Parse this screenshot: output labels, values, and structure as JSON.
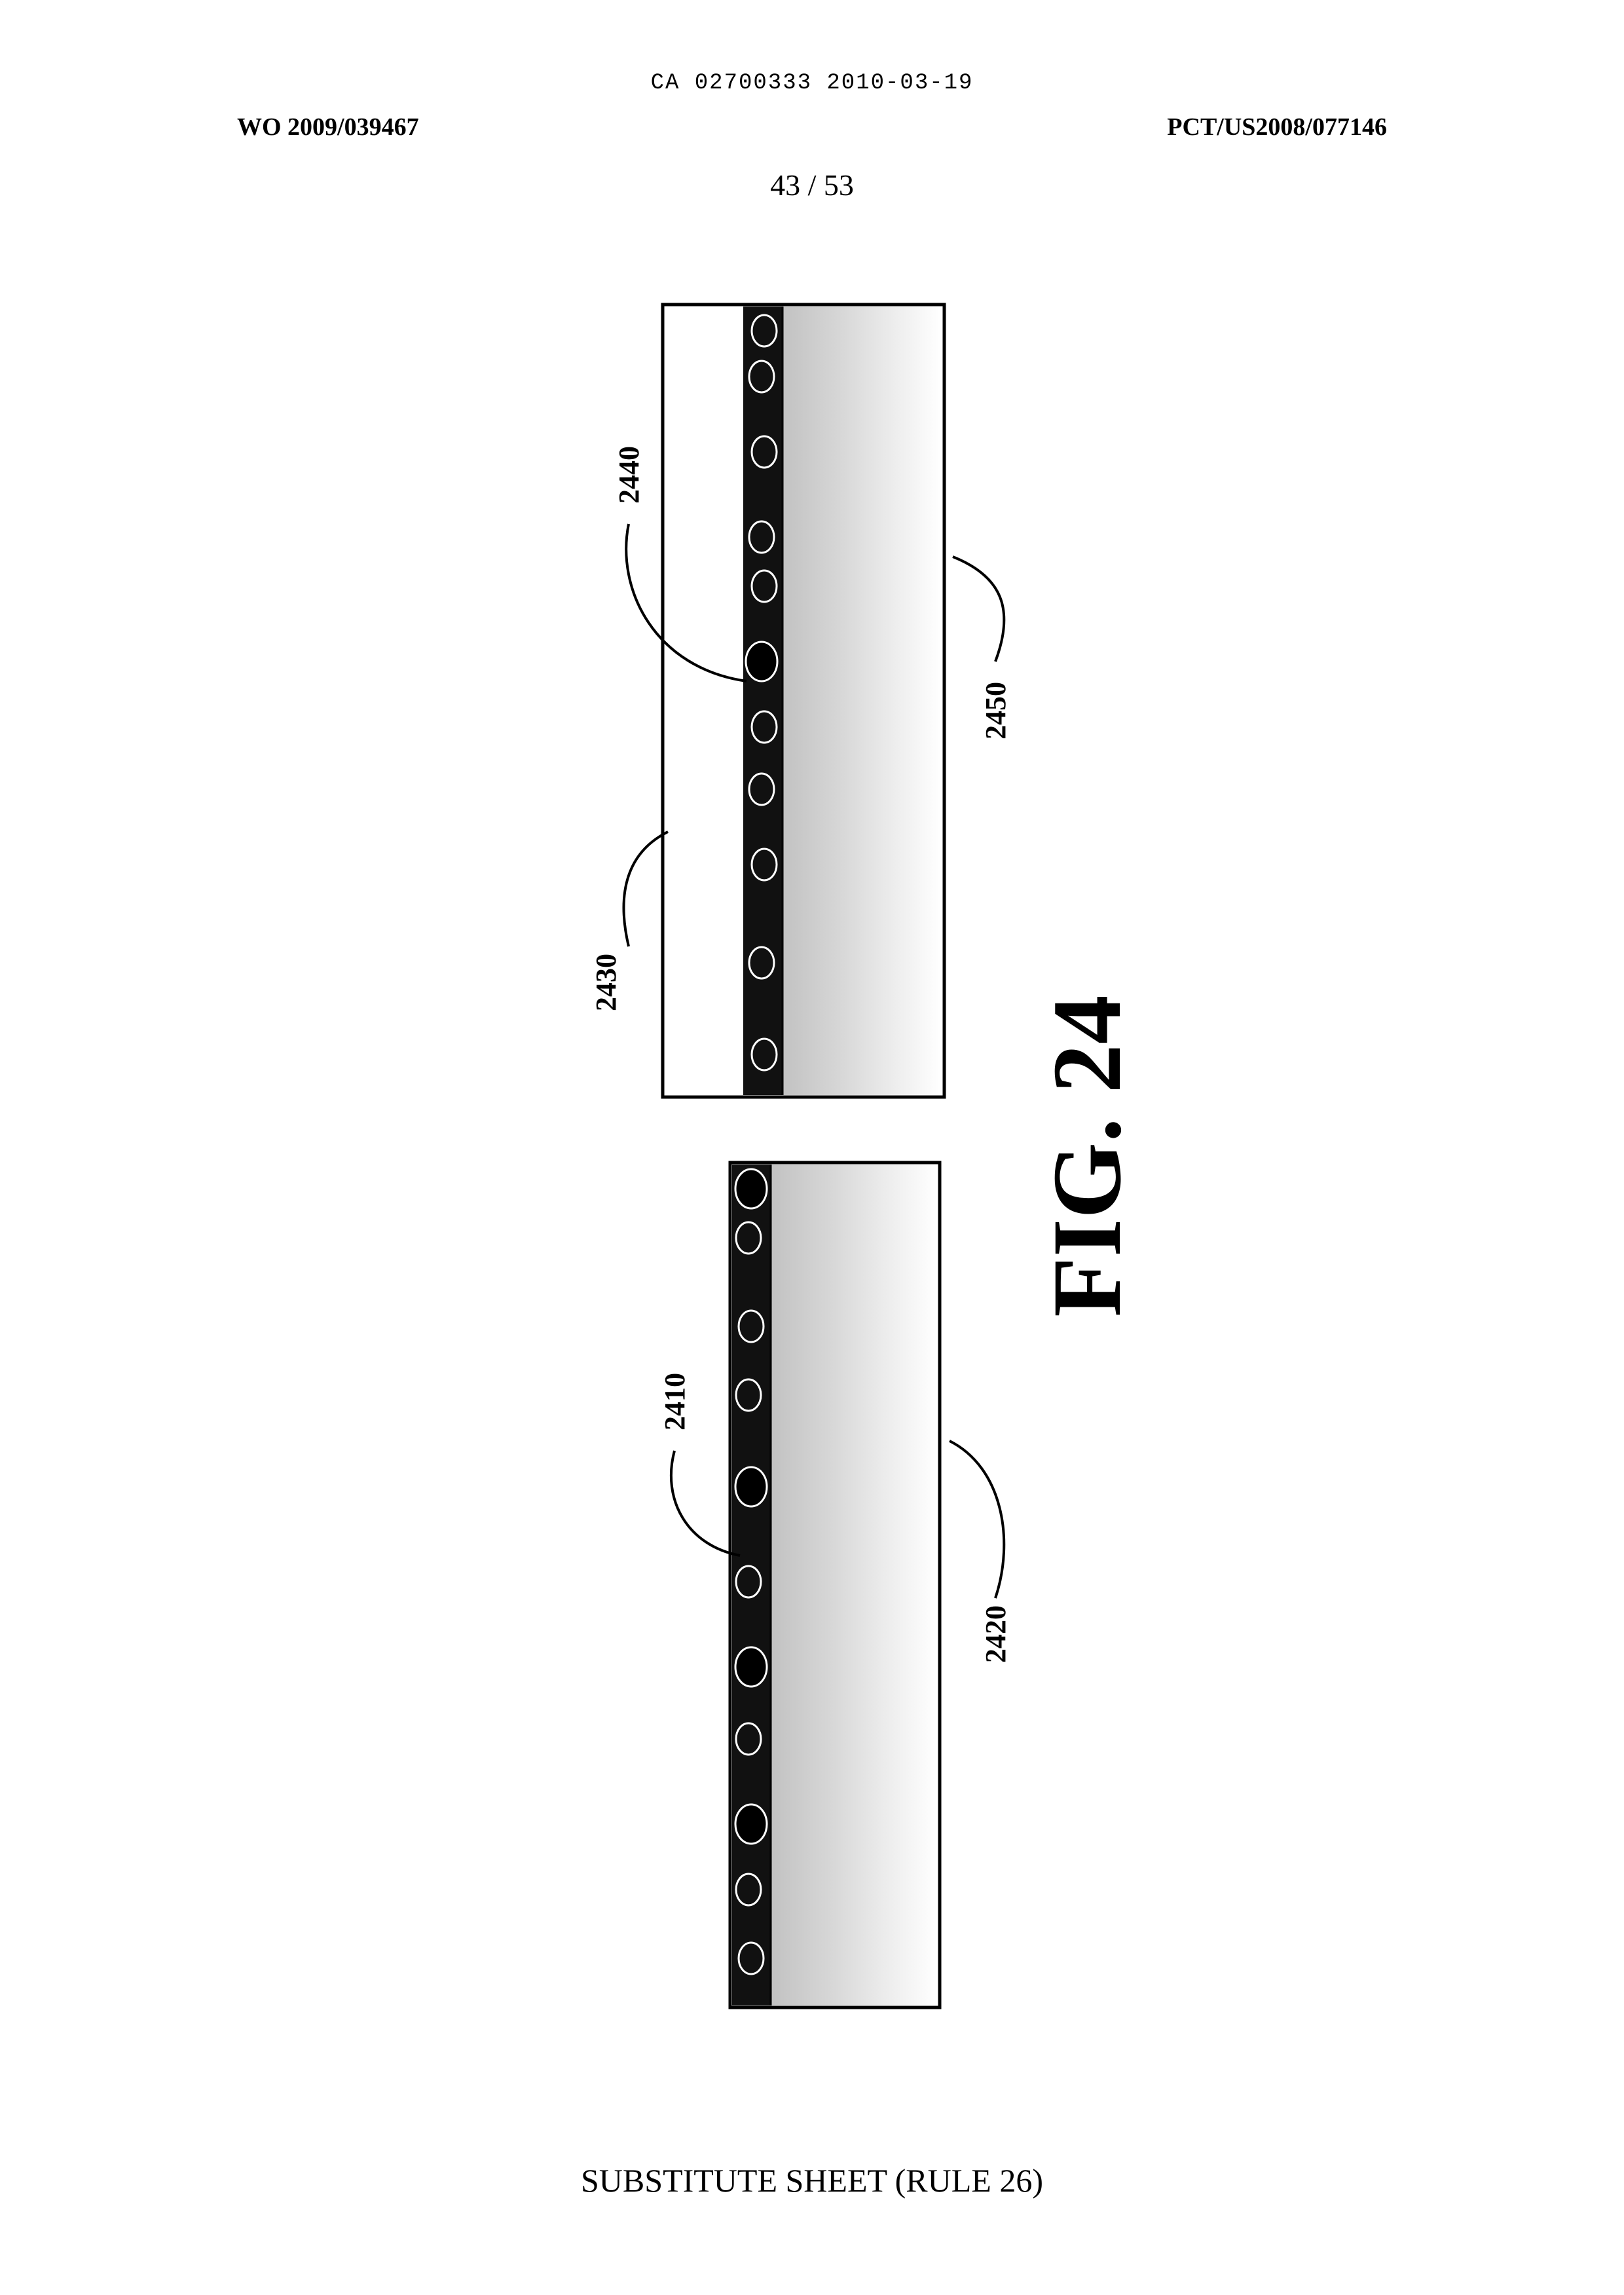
{
  "header": {
    "doc_id": "CA 02700333 2010-03-19",
    "pub_number_left": "WO 2009/039467",
    "pub_number_right": "PCT/US2008/077146",
    "sheet_number": "43 / 53"
  },
  "figure": {
    "label": "FIG. 24",
    "refs": {
      "r2410": "2410",
      "r2420": "2420",
      "r2430": "2430",
      "r2440": "2440",
      "r2450": "2450"
    }
  },
  "footer": {
    "text": "SUBSTITUTE SHEET (RULE 26)"
  }
}
